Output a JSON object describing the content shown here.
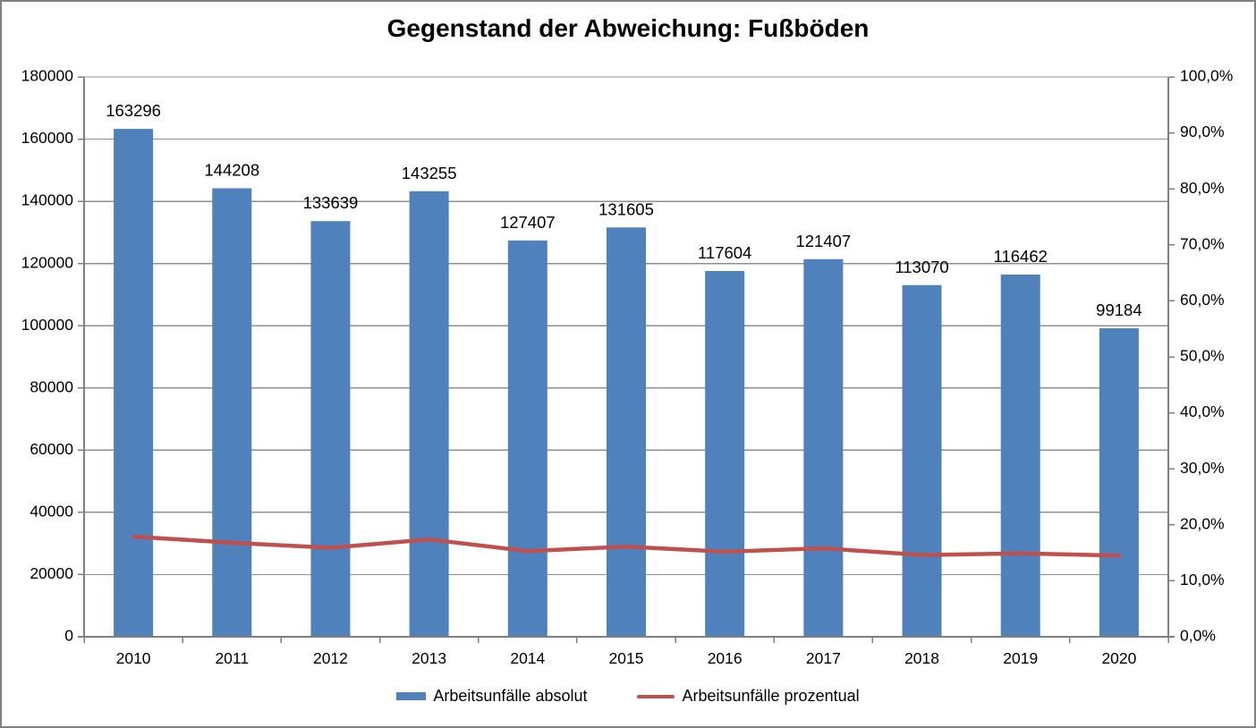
{
  "window": {
    "border_color": "#808080",
    "background_color": "#ffffff"
  },
  "chart_data": {
    "type": "bar",
    "title": "Gegenstand der Abweichung: Fußböden",
    "categories": [
      "2010",
      "2011",
      "2012",
      "2013",
      "2014",
      "2015",
      "2016",
      "2017",
      "2018",
      "2019",
      "2020"
    ],
    "series": [
      {
        "name": "Arbeitsunfälle absolut",
        "type": "bar",
        "axis": "left",
        "color": "#4F81BD",
        "values": [
          163296,
          144208,
          133639,
          143255,
          127407,
          131605,
          117604,
          121407,
          113070,
          116462,
          99184
        ],
        "data_labels_visible": true
      },
      {
        "name": "Arbeitsunfälle prozentual",
        "type": "line",
        "axis": "right",
        "color": "#C0504D",
        "values_percent": [
          17.9,
          16.8,
          15.9,
          17.4,
          15.3,
          16.1,
          15.2,
          15.8,
          14.6,
          14.9,
          14.5
        ],
        "data_labels_visible": false
      }
    ],
    "left_axis": {
      "min": 0,
      "max": 180000,
      "step": 20000,
      "tick_labels": [
        "0",
        "20000",
        "40000",
        "60000",
        "80000",
        "100000",
        "120000",
        "140000",
        "160000",
        "180000"
      ]
    },
    "right_axis": {
      "min": 0,
      "max": 100,
      "step": 10,
      "tick_labels": [
        "0,0%",
        "10,0%",
        "20,0%",
        "30,0%",
        "40,0%",
        "50,0%",
        "60,0%",
        "70,0%",
        "80,0%",
        "90,0%",
        "100,0%"
      ]
    },
    "grid": true,
    "gridline_color": "#8F8F8F",
    "axis_color": "#7F7F7F",
    "text_color": "#000000",
    "legend_position": "bottom"
  },
  "legend": {
    "items": [
      {
        "label": "Arbeitsunfälle absolut",
        "swatch": "bar",
        "color": "#4F81BD"
      },
      {
        "label": "Arbeitsunfälle prozentual",
        "swatch": "line",
        "color": "#C0504D"
      }
    ]
  }
}
